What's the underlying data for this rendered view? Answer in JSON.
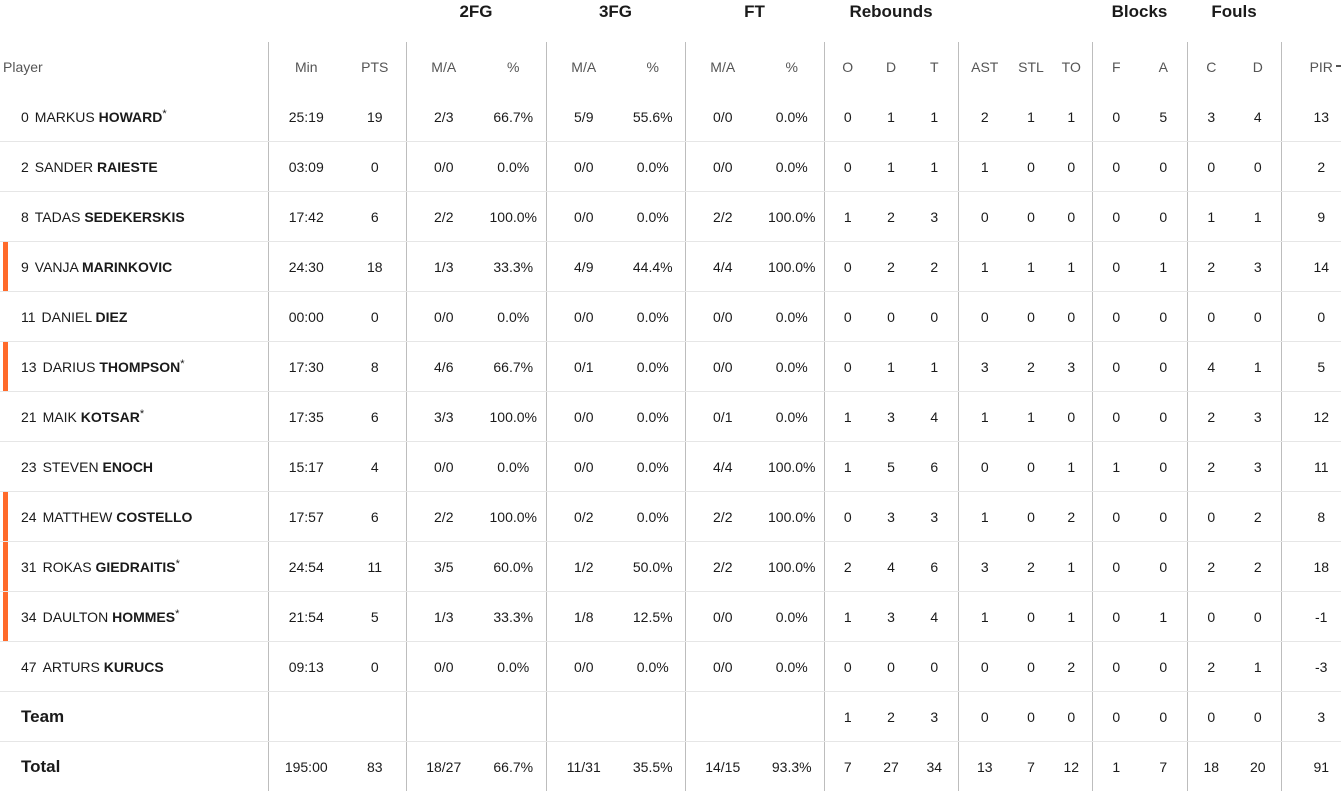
{
  "group_headers": {
    "fg2": "2FG",
    "fg3": "3FG",
    "ft": "FT",
    "rebounds": "Rebounds",
    "blocks": "Blocks",
    "fouls": "Fouls"
  },
  "column_headers": {
    "player": "Player",
    "min": "Min",
    "pts": "PTS",
    "fg2_ma": "M/A",
    "fg2_pct": "%",
    "fg3_ma": "M/A",
    "fg3_pct": "%",
    "ft_ma": "M/A",
    "ft_pct": "%",
    "reb_o": "O",
    "reb_d": "D",
    "reb_t": "T",
    "ast": "AST",
    "stl": "STL",
    "to": "TO",
    "blk_f": "F",
    "blk_a": "A",
    "foul_c": "C",
    "foul_d": "D",
    "pir": "PIR"
  },
  "accent_color": "#ff6a2a",
  "players": [
    {
      "number": "0",
      "first": "MARKUS",
      "last": "HOWARD",
      "starter": "*",
      "highlight": false,
      "min": "25:19",
      "pts": "19",
      "fg2_ma": "2/3",
      "fg2_pct": "66.7%",
      "fg3_ma": "5/9",
      "fg3_pct": "55.6%",
      "ft_ma": "0/0",
      "ft_pct": "0.0%",
      "reb_o": "0",
      "reb_d": "1",
      "reb_t": "1",
      "ast": "2",
      "stl": "1",
      "to": "1",
      "blk_f": "0",
      "blk_a": "5",
      "foul_c": "3",
      "foul_d": "4",
      "pir": "13"
    },
    {
      "number": "2",
      "first": "SANDER",
      "last": "RAIESTE",
      "starter": "",
      "highlight": false,
      "min": "03:09",
      "pts": "0",
      "fg2_ma": "0/0",
      "fg2_pct": "0.0%",
      "fg3_ma": "0/0",
      "fg3_pct": "0.0%",
      "ft_ma": "0/0",
      "ft_pct": "0.0%",
      "reb_o": "0",
      "reb_d": "1",
      "reb_t": "1",
      "ast": "1",
      "stl": "0",
      "to": "0",
      "blk_f": "0",
      "blk_a": "0",
      "foul_c": "0",
      "foul_d": "0",
      "pir": "2"
    },
    {
      "number": "8",
      "first": "TADAS",
      "last": "SEDEKERSKIS",
      "starter": "",
      "highlight": false,
      "min": "17:42",
      "pts": "6",
      "fg2_ma": "2/2",
      "fg2_pct": "100.0%",
      "fg3_ma": "0/0",
      "fg3_pct": "0.0%",
      "ft_ma": "2/2",
      "ft_pct": "100.0%",
      "reb_o": "1",
      "reb_d": "2",
      "reb_t": "3",
      "ast": "0",
      "stl": "0",
      "to": "0",
      "blk_f": "0",
      "blk_a": "0",
      "foul_c": "1",
      "foul_d": "1",
      "pir": "9"
    },
    {
      "number": "9",
      "first": "VANJA",
      "last": "MARINKOVIC",
      "starter": "",
      "highlight": true,
      "min": "24:30",
      "pts": "18",
      "fg2_ma": "1/3",
      "fg2_pct": "33.3%",
      "fg3_ma": "4/9",
      "fg3_pct": "44.4%",
      "ft_ma": "4/4",
      "ft_pct": "100.0%",
      "reb_o": "0",
      "reb_d": "2",
      "reb_t": "2",
      "ast": "1",
      "stl": "1",
      "to": "1",
      "blk_f": "0",
      "blk_a": "1",
      "foul_c": "2",
      "foul_d": "3",
      "pir": "14"
    },
    {
      "number": "11",
      "first": "DANIEL",
      "last": "DIEZ",
      "starter": "",
      "highlight": false,
      "min": "00:00",
      "pts": "0",
      "fg2_ma": "0/0",
      "fg2_pct": "0.0%",
      "fg3_ma": "0/0",
      "fg3_pct": "0.0%",
      "ft_ma": "0/0",
      "ft_pct": "0.0%",
      "reb_o": "0",
      "reb_d": "0",
      "reb_t": "0",
      "ast": "0",
      "stl": "0",
      "to": "0",
      "blk_f": "0",
      "blk_a": "0",
      "foul_c": "0",
      "foul_d": "0",
      "pir": "0"
    },
    {
      "number": "13",
      "first": "DARIUS",
      "last": "THOMPSON",
      "starter": "*",
      "highlight": true,
      "min": "17:30",
      "pts": "8",
      "fg2_ma": "4/6",
      "fg2_pct": "66.7%",
      "fg3_ma": "0/1",
      "fg3_pct": "0.0%",
      "ft_ma": "0/0",
      "ft_pct": "0.0%",
      "reb_o": "0",
      "reb_d": "1",
      "reb_t": "1",
      "ast": "3",
      "stl": "2",
      "to": "3",
      "blk_f": "0",
      "blk_a": "0",
      "foul_c": "4",
      "foul_d": "1",
      "pir": "5"
    },
    {
      "number": "21",
      "first": "MAIK",
      "last": "KOTSAR",
      "starter": "*",
      "highlight": false,
      "min": "17:35",
      "pts": "6",
      "fg2_ma": "3/3",
      "fg2_pct": "100.0%",
      "fg3_ma": "0/0",
      "fg3_pct": "0.0%",
      "ft_ma": "0/1",
      "ft_pct": "0.0%",
      "reb_o": "1",
      "reb_d": "3",
      "reb_t": "4",
      "ast": "1",
      "stl": "1",
      "to": "0",
      "blk_f": "0",
      "blk_a": "0",
      "foul_c": "2",
      "foul_d": "3",
      "pir": "12"
    },
    {
      "number": "23",
      "first": "STEVEN",
      "last": "ENOCH",
      "starter": "",
      "highlight": false,
      "min": "15:17",
      "pts": "4",
      "fg2_ma": "0/0",
      "fg2_pct": "0.0%",
      "fg3_ma": "0/0",
      "fg3_pct": "0.0%",
      "ft_ma": "4/4",
      "ft_pct": "100.0%",
      "reb_o": "1",
      "reb_d": "5",
      "reb_t": "6",
      "ast": "0",
      "stl": "0",
      "to": "1",
      "blk_f": "1",
      "blk_a": "0",
      "foul_c": "2",
      "foul_d": "3",
      "pir": "11"
    },
    {
      "number": "24",
      "first": "MATTHEW",
      "last": "COSTELLO",
      "starter": "",
      "highlight": true,
      "min": "17:57",
      "pts": "6",
      "fg2_ma": "2/2",
      "fg2_pct": "100.0%",
      "fg3_ma": "0/2",
      "fg3_pct": "0.0%",
      "ft_ma": "2/2",
      "ft_pct": "100.0%",
      "reb_o": "0",
      "reb_d": "3",
      "reb_t": "3",
      "ast": "1",
      "stl": "0",
      "to": "2",
      "blk_f": "0",
      "blk_a": "0",
      "foul_c": "0",
      "foul_d": "2",
      "pir": "8"
    },
    {
      "number": "31",
      "first": "ROKAS",
      "last": "GIEDRAITIS",
      "starter": "*",
      "highlight": true,
      "min": "24:54",
      "pts": "11",
      "fg2_ma": "3/5",
      "fg2_pct": "60.0%",
      "fg3_ma": "1/2",
      "fg3_pct": "50.0%",
      "ft_ma": "2/2",
      "ft_pct": "100.0%",
      "reb_o": "2",
      "reb_d": "4",
      "reb_t": "6",
      "ast": "3",
      "stl": "2",
      "to": "1",
      "blk_f": "0",
      "blk_a": "0",
      "foul_c": "2",
      "foul_d": "2",
      "pir": "18"
    },
    {
      "number": "34",
      "first": "DAULTON",
      "last": "HOMMES",
      "starter": "*",
      "highlight": true,
      "min": "21:54",
      "pts": "5",
      "fg2_ma": "1/3",
      "fg2_pct": "33.3%",
      "fg3_ma": "1/8",
      "fg3_pct": "12.5%",
      "ft_ma": "0/0",
      "ft_pct": "0.0%",
      "reb_o": "1",
      "reb_d": "3",
      "reb_t": "4",
      "ast": "1",
      "stl": "0",
      "to": "1",
      "blk_f": "0",
      "blk_a": "1",
      "foul_c": "0",
      "foul_d": "0",
      "pir": "-1"
    },
    {
      "number": "47",
      "first": "ARTURS",
      "last": "KURUCS",
      "starter": "",
      "highlight": false,
      "min": "09:13",
      "pts": "0",
      "fg2_ma": "0/0",
      "fg2_pct": "0.0%",
      "fg3_ma": "0/0",
      "fg3_pct": "0.0%",
      "ft_ma": "0/0",
      "ft_pct": "0.0%",
      "reb_o": "0",
      "reb_d": "0",
      "reb_t": "0",
      "ast": "0",
      "stl": "0",
      "to": "2",
      "blk_f": "0",
      "blk_a": "0",
      "foul_c": "2",
      "foul_d": "1",
      "pir": "-3"
    }
  ],
  "team_row": {
    "label": "Team",
    "min": "",
    "pts": "",
    "fg2_ma": "",
    "fg2_pct": "",
    "fg3_ma": "",
    "fg3_pct": "",
    "ft_ma": "",
    "ft_pct": "",
    "reb_o": "1",
    "reb_d": "2",
    "reb_t": "3",
    "ast": "0",
    "stl": "0",
    "to": "0",
    "blk_f": "0",
    "blk_a": "0",
    "foul_c": "0",
    "foul_d": "0",
    "pir": "3"
  },
  "total_row": {
    "label": "Total",
    "min": "195:00",
    "pts": "83",
    "fg2_ma": "18/27",
    "fg2_pct": "66.7%",
    "fg3_ma": "11/31",
    "fg3_pct": "35.5%",
    "ft_ma": "14/15",
    "ft_pct": "93.3%",
    "reb_o": "7",
    "reb_d": "27",
    "reb_t": "34",
    "ast": "13",
    "stl": "7",
    "to": "12",
    "blk_f": "1",
    "blk_a": "7",
    "foul_c": "18",
    "foul_d": "20",
    "pir": "91"
  }
}
